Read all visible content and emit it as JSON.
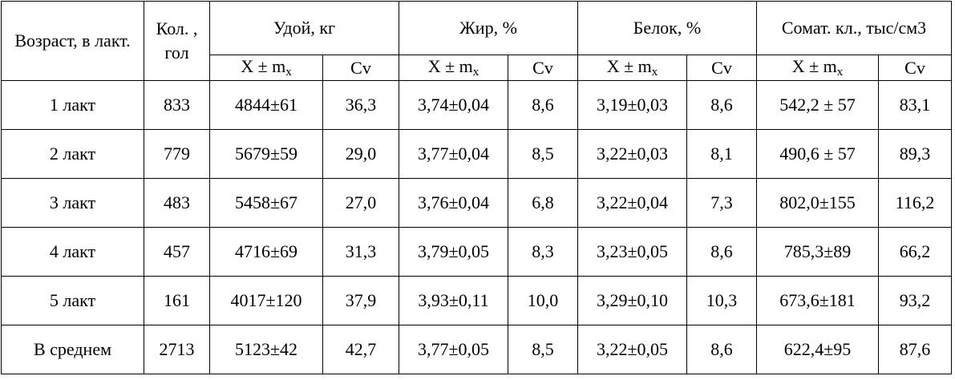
{
  "table": {
    "headers": {
      "age": "Возраст, в лакт.",
      "count": "Кол. , гол",
      "milk": "Удой, кг",
      "fat": "Жир, %",
      "protein": "Белок, %",
      "somatic": "Сомат. кл., тыс/см3"
    },
    "subheaders": {
      "mean_prefix": "X ± m",
      "mean_sub": "x",
      "cv": "Cv"
    },
    "rows": [
      {
        "age": "1 лакт",
        "count": "833",
        "milk_mean": "4844±61",
        "milk_cv": "36,3",
        "fat_mean": "3,74±0,04",
        "fat_cv": "8,6",
        "protein_mean": "3,19±0,03",
        "protein_cv": "8,6",
        "somatic_mean": "542,2 ± 57",
        "somatic_cv": "83,1"
      },
      {
        "age": "2 лакт",
        "count": "779",
        "milk_mean": "5679±59",
        "milk_cv": "29,0",
        "fat_mean": "3,77±0,04",
        "fat_cv": "8,5",
        "protein_mean": "3,22±0,03",
        "protein_cv": "8,1",
        "somatic_mean": "490,6 ± 57",
        "somatic_cv": "89,3"
      },
      {
        "age": "3 лакт",
        "count": "483",
        "milk_mean": "5458±67",
        "milk_cv": "27,0",
        "fat_mean": "3,76±0,04",
        "fat_cv": "6,8",
        "protein_mean": "3,22±0,04",
        "protein_cv": "7,3",
        "somatic_mean": "802,0±155",
        "somatic_cv": "116,2"
      },
      {
        "age": "4 лакт",
        "count": "457",
        "milk_mean": "4716±69",
        "milk_cv": "31,3",
        "fat_mean": "3,79±0,05",
        "fat_cv": "8,3",
        "protein_mean": "3,23±0,05",
        "protein_cv": "8,6",
        "somatic_mean": "785,3±89",
        "somatic_cv": "66,2"
      },
      {
        "age": "5 лакт",
        "count": "161",
        "milk_mean": "4017±120",
        "milk_cv": "37,9",
        "fat_mean": "3,93±0,11",
        "fat_cv": "10,0",
        "protein_mean": "3,29±0,10",
        "protein_cv": "10,3",
        "somatic_mean": "673,6±181",
        "somatic_cv": "93,2"
      },
      {
        "age": "В среднем",
        "count": "2713",
        "milk_mean": "5123±42",
        "milk_cv": "42,7",
        "fat_mean": "3,77±0,05",
        "fat_cv": "8,5",
        "protein_mean": "3,22±0,05",
        "protein_cv": "8,6",
        "somatic_mean": "622,4±95",
        "somatic_cv": "87,6"
      }
    ]
  }
}
